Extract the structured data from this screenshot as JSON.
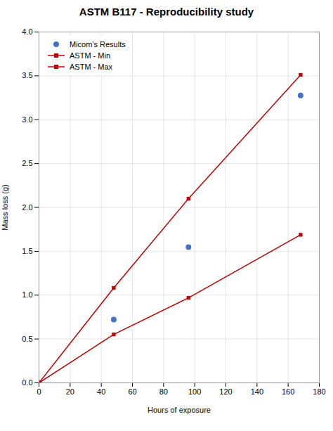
{
  "chart_data": {
    "type": "line",
    "title": "ASTM B117 - Reproducibility study",
    "xlabel": "Hours of exposure",
    "ylabel": "Mass loss (g)",
    "x": [
      0,
      48,
      96,
      168
    ],
    "series": [
      {
        "name": "Micom's Results",
        "color": "#4472c4",
        "type": "scatter",
        "marker": "circle",
        "values": [
          0,
          0.722,
          1.5473,
          3.2767
        ]
      },
      {
        "name": "ASTM - Min",
        "color": "#c00000",
        "type": "line",
        "marker": "square",
        "values": [
          0,
          0.5518,
          0.9694,
          1.6882
        ]
      },
      {
        "name": "ASTM - Max",
        "color": "#c00000",
        "type": "line",
        "marker": "square",
        "values": [
          0,
          1.0822,
          2.1,
          3.511
        ]
      }
    ],
    "xlim": [
      0,
      180
    ],
    "ylim": [
      0,
      4
    ],
    "xticks": [
      0,
      20,
      40,
      60,
      80,
      100,
      120,
      140,
      160,
      180
    ],
    "yticks": [
      {
        "value": 0,
        "label": "0.0"
      },
      {
        "value": 0.5,
        "label": "0.5"
      },
      {
        "value": 1,
        "label": "1.0"
      },
      {
        "value": 1.5,
        "label": "1.5"
      },
      {
        "value": 2,
        "label": "2.0"
      },
      {
        "value": 2.5,
        "label": "2.5"
      },
      {
        "value": 3,
        "label": "3.0"
      },
      {
        "value": 3.5,
        "label": "3.5"
      },
      {
        "value": 4,
        "label": "4.0"
      }
    ],
    "grid": true,
    "legend": "upper left"
  }
}
